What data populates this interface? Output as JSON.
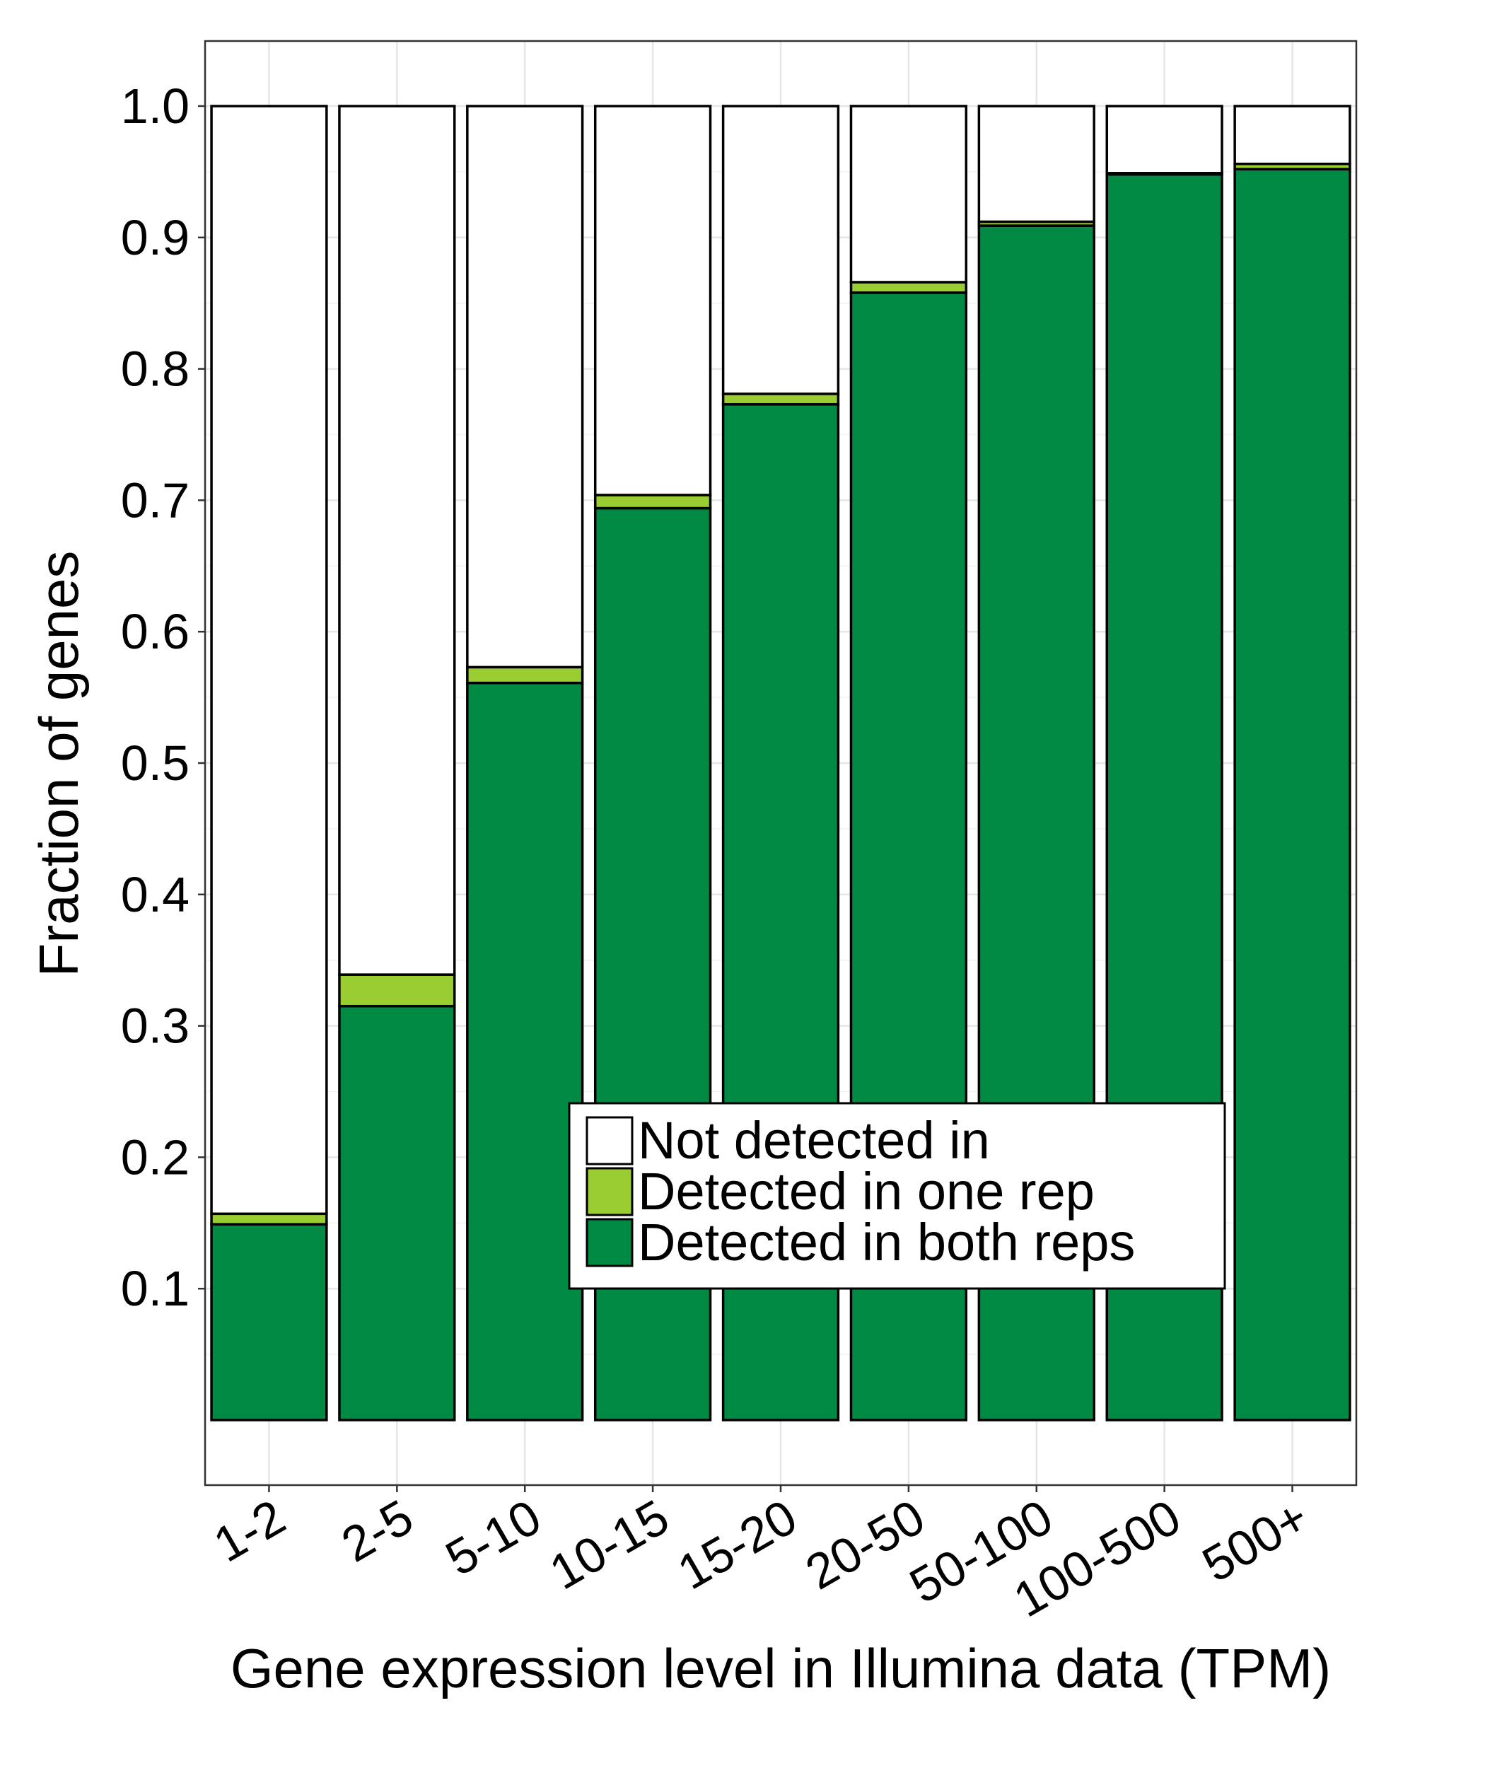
{
  "chart_data": {
    "type": "bar",
    "stacked": true,
    "title": "",
    "xlabel": "Gene expression level in Illumina data (TPM)",
    "ylabel": "Fraction of genes",
    "ylim": [
      0,
      1.05
    ],
    "yticks": [
      "0.1",
      "0.2",
      "0.3",
      "0.4",
      "0.5",
      "0.6",
      "0.7",
      "0.8",
      "0.9",
      "1.0"
    ],
    "categories": [
      "1-2",
      "2-5",
      "5-10",
      "10-15",
      "15-20",
      "20-50",
      "50-100",
      "100-500",
      "500+"
    ],
    "series": [
      {
        "name": "Detected in both  reps",
        "color": "#008a43",
        "values": [
          0.149,
          0.315,
          0.561,
          0.694,
          0.773,
          0.858,
          0.909,
          0.948,
          0.952
        ]
      },
      {
        "name": "Detected in one  rep",
        "color": "#9acd32",
        "values": [
          0.008,
          0.024,
          0.012,
          0.01,
          0.008,
          0.008,
          0.003,
          0.001,
          0.004
        ]
      },
      {
        "name": "Not detected in",
        "color": "#ffffff",
        "values": [
          0.843,
          0.661,
          0.427,
          0.296,
          0.219,
          0.134,
          0.088,
          0.051,
          0.044
        ]
      }
    ],
    "legend": {
      "position": "inside-lower-right",
      "order": [
        "Not detected in",
        "Detected in one  rep",
        "Detected in both  reps"
      ]
    },
    "grid": true,
    "theme": "bw"
  }
}
